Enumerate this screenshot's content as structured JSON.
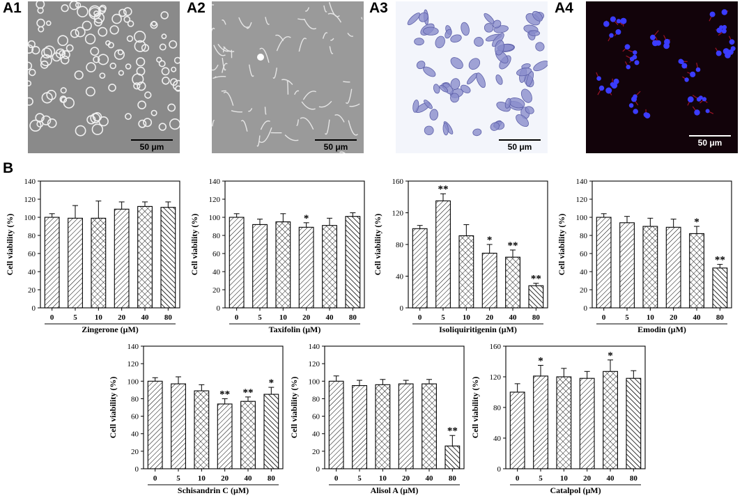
{
  "panels": {
    "a1": "A1",
    "a2": "A2",
    "a3": "A3",
    "a4": "A4",
    "b": "B"
  },
  "scale_label": "50 μm",
  "image_colors": {
    "a1_bg": "#8a8a8a",
    "a2_bg": "#9a9a9a",
    "a3_bg": "#f3f5fb",
    "a3_cell": "#7d80c6",
    "a4_bg": "#12030a",
    "a4_nucleus": "#3b3cff",
    "a4_actin": "#c0182e"
  },
  "chart_data": [
    {
      "type": "bar",
      "title": "",
      "xlabel": "Zingerone (μM)",
      "ylabel": "Cell viability (%)",
      "categories": [
        "0",
        "5",
        "10",
        "20",
        "40",
        "80"
      ],
      "values": [
        100,
        99,
        99,
        109,
        112,
        111
      ],
      "errors": [
        4,
        14,
        19,
        8,
        5,
        6
      ],
      "sig": [
        "",
        "",
        "",
        "",
        "",
        ""
      ],
      "ylim": [
        0,
        140
      ],
      "yticks": [
        "0",
        "20",
        "40",
        "60",
        "80",
        "100",
        "120",
        "140"
      ]
    },
    {
      "type": "bar",
      "title": "",
      "xlabel": "Taxifolin (μM)",
      "ylabel": "Cell viability (%)",
      "categories": [
        "0",
        "5",
        "10",
        "20",
        "40",
        "80"
      ],
      "values": [
        100,
        92,
        95,
        89,
        91,
        101
      ],
      "errors": [
        4,
        6,
        9,
        5,
        8,
        4
      ],
      "sig": [
        "",
        "",
        "",
        "*",
        "",
        ""
      ],
      "ylim": [
        0,
        140
      ],
      "yticks": [
        "0",
        "20",
        "40",
        "60",
        "80",
        "100",
        "120",
        "140"
      ]
    },
    {
      "type": "bar",
      "title": "",
      "xlabel": "Isoliquiritigenin (μM)",
      "ylabel": "Cell viability (%)",
      "categories": [
        "0",
        "5",
        "10",
        "20",
        "40",
        "80"
      ],
      "values": [
        100,
        135,
        91,
        69,
        64,
        28
      ],
      "errors": [
        4,
        9,
        14,
        11,
        9,
        3
      ],
      "sig": [
        "",
        "**",
        "",
        "*",
        "**",
        "**"
      ],
      "ylim": [
        0,
        160
      ],
      "yticks": [
        "0",
        "40",
        "80",
        "120",
        "160"
      ]
    },
    {
      "type": "bar",
      "title": "",
      "xlabel": "Emodin (μM)",
      "ylabel": "Cell viability (%)",
      "categories": [
        "0",
        "5",
        "10",
        "20",
        "40",
        "80"
      ],
      "values": [
        100,
        94,
        90,
        89,
        82,
        44
      ],
      "errors": [
        4,
        7,
        9,
        9,
        8,
        4
      ],
      "sig": [
        "",
        "",
        "",
        "",
        "*",
        "**"
      ],
      "ylim": [
        0,
        140
      ],
      "yticks": [
        "0",
        "20",
        "40",
        "60",
        "80",
        "100",
        "120",
        "140"
      ]
    },
    {
      "type": "bar",
      "title": "",
      "xlabel": "Schisandrin C (μM)",
      "ylabel": "Cell viability (%)",
      "categories": [
        "0",
        "5",
        "10",
        "20",
        "40",
        "80"
      ],
      "values": [
        100,
        97,
        89,
        74,
        77,
        85
      ],
      "errors": [
        4,
        8,
        7,
        6,
        5,
        8
      ],
      "sig": [
        "",
        "",
        "",
        "**",
        "**",
        "*"
      ],
      "ylim": [
        0,
        140
      ],
      "yticks": [
        "0",
        "20",
        "40",
        "60",
        "80",
        "100",
        "120",
        "140"
      ]
    },
    {
      "type": "bar",
      "title": "",
      "xlabel": "Alisol A (μM)",
      "ylabel": "Cell viability (%)",
      "categories": [
        "0",
        "5",
        "10",
        "20",
        "40",
        "80"
      ],
      "values": [
        100,
        95,
        96,
        97,
        97,
        26
      ],
      "errors": [
        6,
        6,
        6,
        4,
        5,
        12
      ],
      "sig": [
        "",
        "",
        "",
        "",
        "",
        "**"
      ],
      "ylim": [
        0,
        140
      ],
      "yticks": [
        "0",
        "20",
        "40",
        "60",
        "80",
        "100",
        "120",
        "140"
      ]
    },
    {
      "type": "bar",
      "title": "",
      "xlabel": "Catalpol (μM)",
      "ylabel": "Cell viability (%)",
      "categories": [
        "0",
        "5",
        "10",
        "20",
        "40",
        "80"
      ],
      "values": [
        100,
        121,
        120,
        118,
        127,
        118
      ],
      "errors": [
        11,
        14,
        11,
        9,
        15,
        10
      ],
      "sig": [
        "",
        "*",
        "",
        "",
        "*",
        ""
      ],
      "ylim": [
        0,
        160
      ],
      "yticks": [
        "0",
        "40",
        "80",
        "120",
        "160"
      ]
    }
  ]
}
